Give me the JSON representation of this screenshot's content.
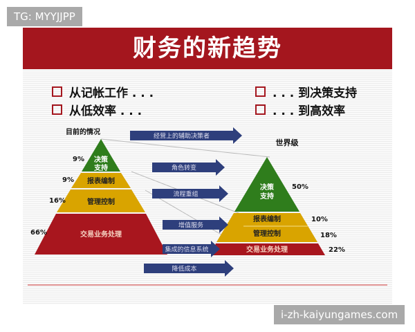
{
  "watermark_top": "TG: MYYJJPP",
  "watermark_bottom": "i-zh-kaiyungames.com",
  "title": "财务的新趋势",
  "bullets": {
    "left": [
      "从记帐工作 . . .",
      "从低效率 . . ."
    ],
    "right": [
      ". . . 到决策支持",
      ". . . 到高效率"
    ]
  },
  "current": {
    "heading": "目前的情况",
    "layers": [
      {
        "label": "决策支持",
        "line1": "决策",
        "line2": "支持",
        "percent": "9%",
        "color": "#2f7d1c"
      },
      {
        "label": "报表编制",
        "percent": "9%",
        "color": "#d9a400"
      },
      {
        "label": "管理控制",
        "percent": "16%",
        "color": "#d9a400"
      },
      {
        "label": "交易业务处理",
        "percent": "66%",
        "color": "#a8161e"
      }
    ]
  },
  "world_class": {
    "heading": "世界级",
    "layers": [
      {
        "label": "决策支持",
        "line1": "决策",
        "line2": "支持",
        "percent": "50%",
        "color": "#2f7d1c"
      },
      {
        "label": "报表编制",
        "percent": "10%",
        "color": "#d9a400"
      },
      {
        "label": "管理控制",
        "percent": "18%",
        "color": "#d9a400"
      },
      {
        "label": "交易业务处理",
        "percent": "22%",
        "color": "#a8161e"
      }
    ]
  },
  "arrows": [
    "经营上的辅助决策者",
    "角色转变",
    "流程重组",
    "增值服务",
    "集成的信息系统",
    "降低成本"
  ],
  "colors": {
    "title_bar": "#a4161e",
    "arrow": "#2e3f7c"
  }
}
